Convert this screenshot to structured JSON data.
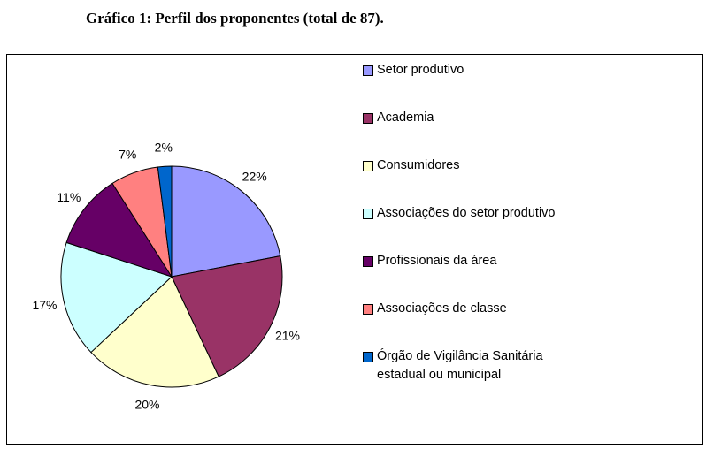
{
  "caption": "Gráfico 1: Perfil dos proponentes (total de 87).",
  "chart_data": {
    "type": "pie",
    "title": "Gráfico 1: Perfil dos proponentes (total de 87).",
    "legend_position": "right",
    "slices": [
      {
        "label": "Setor produtivo",
        "value": 22,
        "display": "22%",
        "color": "#9999ff"
      },
      {
        "label": "Academia",
        "value": 21,
        "display": "21%",
        "color": "#993366"
      },
      {
        "label": "Consumidores",
        "value": 20,
        "display": "20%",
        "color": "#ffffcc"
      },
      {
        "label": "Associações do setor produtivo",
        "value": 17,
        "display": "17%",
        "color": "#ccffff"
      },
      {
        "label": "Profissionais da área",
        "value": 11,
        "display": "11%",
        "color": "#660066"
      },
      {
        "label": "Associações de classe",
        "value": 7,
        "display": "7%",
        "color": "#ff8080"
      },
      {
        "label": "Órgão de Vigilância Sanitária\nestadual ou municipal",
        "value": 2,
        "display": "2%",
        "color": "#0066cc"
      }
    ]
  }
}
